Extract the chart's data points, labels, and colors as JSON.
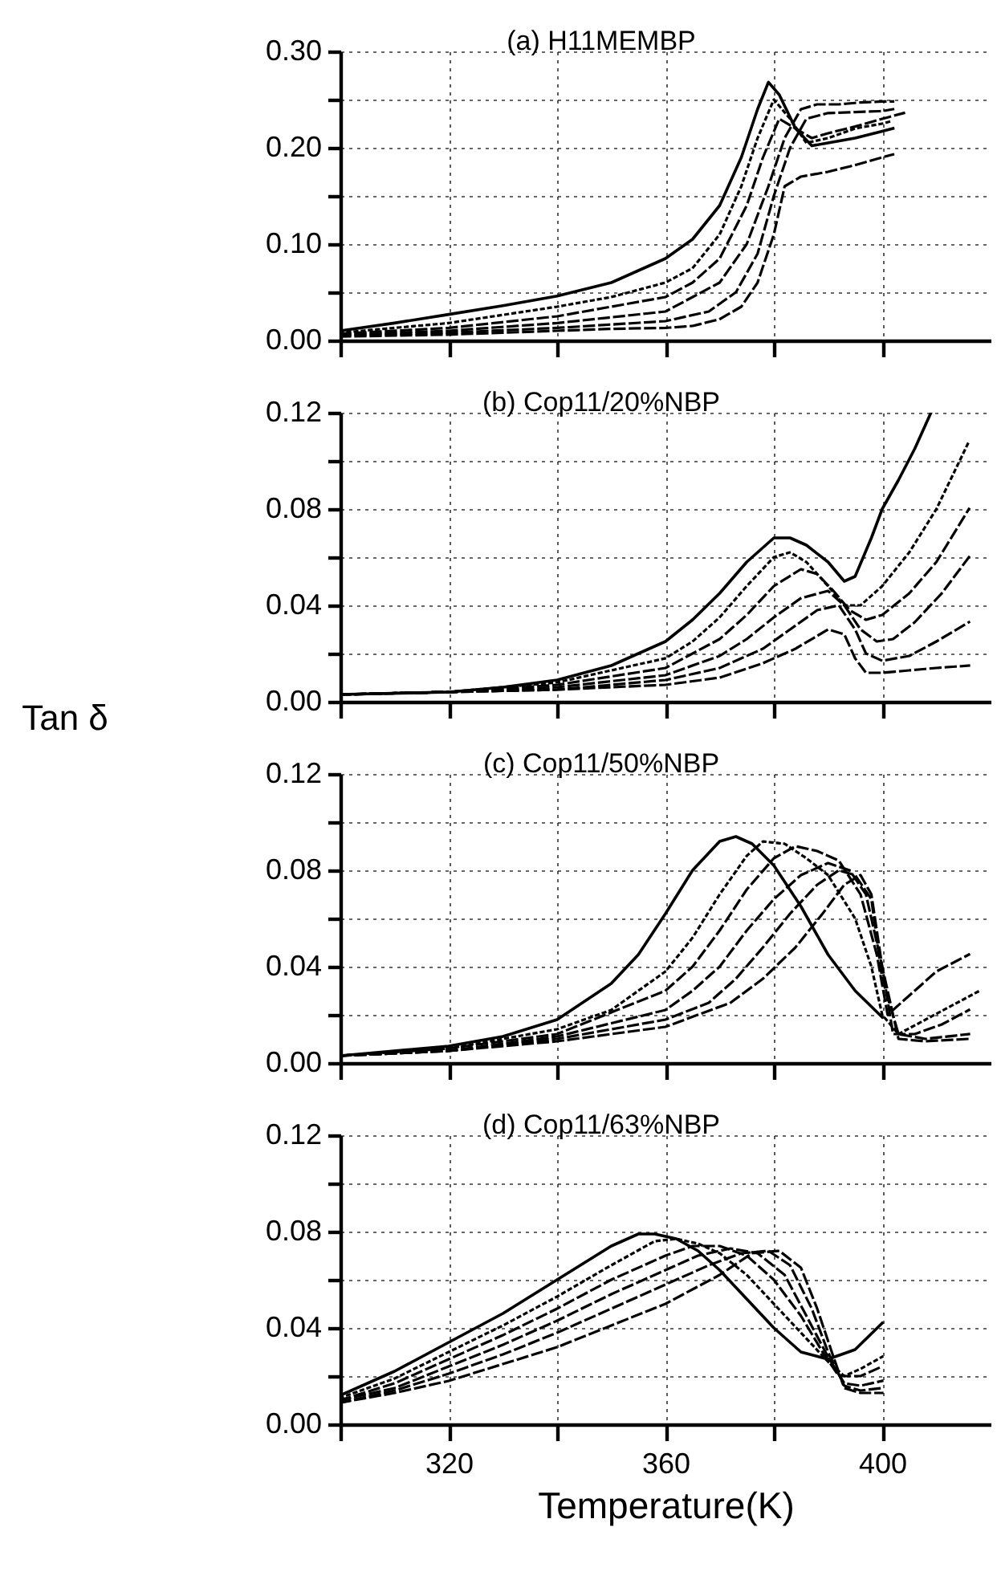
{
  "chart_data": [
    {
      "type": "line",
      "title": "(a) H11MEMBP",
      "xlim": [
        300,
        420
      ],
      "xticks": [
        {
          "value": 300,
          "label": null
        },
        320,
        {
          "value": 340,
          "label": null
        },
        360,
        {
          "value": 380,
          "label": null
        },
        400
      ],
      "ylim": [
        0,
        0.3
      ],
      "yticks": [
        {
          "value": 0,
          "label": "0.00"
        },
        {
          "value": 0.05,
          "label": null
        },
        {
          "value": 0.1,
          "label": "0.10"
        },
        {
          "value": 0.15,
          "label": null
        },
        {
          "value": 0.2,
          "label": "0.20"
        },
        {
          "value": 0.25,
          "label": null
        },
        {
          "value": 0.3,
          "label": "0.30"
        }
      ],
      "grid": true,
      "tick_labels": "y",
      "series": [
        {
          "color": "#000000",
          "line_style": "solid",
          "x": [
            300,
            310,
            320,
            330,
            340,
            350,
            360,
            365,
            370,
            374,
            377,
            379,
            381,
            384,
            387,
            390,
            395,
            400,
            402
          ],
          "values": [
            0.01,
            0.018,
            0.027,
            0.036,
            0.046,
            0.06,
            0.085,
            0.105,
            0.14,
            0.19,
            0.24,
            0.268,
            0.255,
            0.22,
            0.202,
            0.205,
            0.21,
            0.217,
            0.22
          ]
        },
        {
          "color": "#000000",
          "line_style": "dotted",
          "x": [
            300,
            320,
            340,
            350,
            360,
            365,
            370,
            374,
            377,
            380,
            383,
            386,
            390,
            395,
            400,
            402
          ],
          "values": [
            0.008,
            0.018,
            0.035,
            0.045,
            0.06,
            0.075,
            0.11,
            0.16,
            0.21,
            0.25,
            0.23,
            0.205,
            0.21,
            0.22,
            0.225,
            0.228
          ]
        },
        {
          "color": "#000000",
          "line_style": "dashed",
          "x": [
            300,
            320,
            340,
            360,
            365,
            370,
            375,
            378,
            381,
            384,
            387,
            390,
            395,
            400,
            404
          ],
          "values": [
            0.007,
            0.013,
            0.025,
            0.045,
            0.06,
            0.085,
            0.14,
            0.19,
            0.23,
            0.22,
            0.21,
            0.215,
            0.222,
            0.23,
            0.236
          ]
        },
        {
          "color": "#000000",
          "line_style": "dashed",
          "x": [
            300,
            320,
            340,
            360,
            365,
            370,
            375,
            379,
            382,
            385,
            388,
            392,
            396,
            400,
            402
          ],
          "values": [
            0.006,
            0.01,
            0.018,
            0.03,
            0.045,
            0.06,
            0.1,
            0.16,
            0.21,
            0.24,
            0.245,
            0.245,
            0.247,
            0.248,
            0.248
          ]
        },
        {
          "color": "#000000",
          "line_style": "dashed",
          "x": [
            300,
            320,
            340,
            360,
            368,
            373,
            377,
            380,
            383,
            386,
            390,
            395,
            400,
            402
          ],
          "values": [
            0.005,
            0.008,
            0.013,
            0.02,
            0.03,
            0.05,
            0.09,
            0.15,
            0.2,
            0.23,
            0.236,
            0.237,
            0.238,
            0.24
          ]
        },
        {
          "color": "#000000",
          "line_style": "dashed",
          "x": [
            300,
            320,
            340,
            350,
            360,
            365,
            370,
            374,
            377,
            380,
            382,
            385,
            390,
            395,
            400,
            402
          ],
          "values": [
            0.004,
            0.006,
            0.01,
            0.012,
            0.013,
            0.015,
            0.022,
            0.035,
            0.06,
            0.11,
            0.16,
            0.17,
            0.175,
            0.182,
            0.19,
            0.193
          ]
        }
      ]
    },
    {
      "type": "line",
      "title": "(b) Cop11/20%NBP",
      "ylabel": "Tan δ",
      "xlim": [
        300,
        420
      ],
      "xticks": [
        {
          "value": 300,
          "label": null
        },
        320,
        {
          "value": 340,
          "label": null
        },
        360,
        {
          "value": 380,
          "label": null
        },
        400
      ],
      "ylim": [
        0,
        0.12
      ],
      "yticks": [
        {
          "value": 0,
          "label": "0.00"
        },
        {
          "value": 0.02,
          "label": null
        },
        {
          "value": 0.04,
          "label": "0.04"
        },
        {
          "value": 0.06,
          "label": null
        },
        {
          "value": 0.08,
          "label": "0.08"
        },
        {
          "value": 0.1,
          "label": null
        },
        {
          "value": 0.12,
          "label": "0.12"
        }
      ],
      "grid": true,
      "tick_labels": "y",
      "series": [
        {
          "color": "#000000",
          "line_style": "solid",
          "x": [
            300,
            320,
            330,
            340,
            350,
            360,
            365,
            370,
            375,
            380,
            383,
            386,
            390,
            393,
            395,
            398,
            400,
            403,
            406,
            409
          ],
          "values": [
            0.003,
            0.004,
            0.006,
            0.009,
            0.015,
            0.025,
            0.034,
            0.045,
            0.058,
            0.068,
            0.068,
            0.065,
            0.058,
            0.05,
            0.052,
            0.068,
            0.08,
            0.092,
            0.105,
            0.12
          ]
        },
        {
          "color": "#000000",
          "line_style": "dotted",
          "x": [
            300,
            320,
            340,
            360,
            365,
            370,
            375,
            380,
            383,
            386,
            390,
            393,
            396,
            400,
            405,
            410,
            416
          ],
          "values": [
            0.003,
            0.004,
            0.008,
            0.018,
            0.025,
            0.035,
            0.048,
            0.06,
            0.062,
            0.058,
            0.048,
            0.04,
            0.04,
            0.048,
            0.062,
            0.08,
            0.108
          ]
        },
        {
          "color": "#000000",
          "line_style": "dashed",
          "x": [
            300,
            320,
            340,
            360,
            370,
            375,
            380,
            385,
            388,
            391,
            394,
            397,
            400,
            405,
            410,
            416
          ],
          "values": [
            0.003,
            0.004,
            0.007,
            0.014,
            0.026,
            0.036,
            0.048,
            0.055,
            0.053,
            0.046,
            0.038,
            0.034,
            0.036,
            0.045,
            0.058,
            0.08
          ]
        },
        {
          "color": "#000000",
          "line_style": "dashed",
          "x": [
            300,
            320,
            340,
            360,
            370,
            375,
            380,
            385,
            390,
            393,
            396,
            399,
            402,
            406,
            411,
            416
          ],
          "values": [
            0.003,
            0.004,
            0.006,
            0.011,
            0.019,
            0.026,
            0.035,
            0.043,
            0.046,
            0.04,
            0.03,
            0.025,
            0.026,
            0.033,
            0.045,
            0.06
          ]
        },
        {
          "color": "#000000",
          "line_style": "dashed",
          "x": [
            300,
            320,
            340,
            360,
            370,
            378,
            383,
            388,
            392,
            395,
            397,
            400,
            405,
            410,
            416
          ],
          "values": [
            0.003,
            0.004,
            0.005,
            0.009,
            0.014,
            0.022,
            0.03,
            0.038,
            0.04,
            0.03,
            0.02,
            0.017,
            0.019,
            0.025,
            0.033
          ]
        },
        {
          "color": "#000000",
          "line_style": "dashed",
          "x": [
            300,
            320,
            340,
            360,
            370,
            378,
            384,
            390,
            393,
            395,
            397,
            400,
            405,
            410,
            416
          ],
          "values": [
            0.003,
            0.004,
            0.005,
            0.007,
            0.01,
            0.016,
            0.022,
            0.03,
            0.028,
            0.018,
            0.012,
            0.012,
            0.013,
            0.014,
            0.015
          ]
        }
      ]
    },
    {
      "type": "line",
      "title": "(c) Cop11/50%NBP",
      "xlim": [
        300,
        420
      ],
      "xticks": [
        {
          "value": 300,
          "label": null
        },
        320,
        {
          "value": 340,
          "label": null
        },
        360,
        {
          "value": 380,
          "label": null
        },
        400
      ],
      "ylim": [
        0,
        0.12
      ],
      "yticks": [
        {
          "value": 0,
          "label": "0.00"
        },
        {
          "value": 0.02,
          "label": null
        },
        {
          "value": 0.04,
          "label": "0.04"
        },
        {
          "value": 0.06,
          "label": null
        },
        {
          "value": 0.08,
          "label": "0.08"
        },
        {
          "value": 0.1,
          "label": null
        },
        {
          "value": 0.12,
          "label": "0.12"
        }
      ],
      "grid": true,
      "tick_labels": "y",
      "series": [
        {
          "color": "#000000",
          "line_style": "solid",
          "x": [
            300,
            320,
            330,
            340,
            350,
            355,
            360,
            365,
            370,
            373,
            376,
            380,
            385,
            390,
            395,
            400
          ],
          "values": [
            0.003,
            0.007,
            0.011,
            0.018,
            0.033,
            0.045,
            0.062,
            0.08,
            0.092,
            0.094,
            0.091,
            0.082,
            0.065,
            0.045,
            0.03,
            0.019
          ]
        },
        {
          "color": "#000000",
          "line_style": "dotted",
          "x": [
            300,
            320,
            340,
            350,
            360,
            365,
            370,
            375,
            378,
            382,
            386,
            390,
            395,
            398,
            400,
            403,
            408,
            413,
            418
          ],
          "values": [
            0.003,
            0.006,
            0.014,
            0.022,
            0.038,
            0.052,
            0.07,
            0.086,
            0.092,
            0.091,
            0.085,
            0.078,
            0.06,
            0.04,
            0.02,
            0.012,
            0.018,
            0.024,
            0.03
          ]
        },
        {
          "color": "#000000",
          "line_style": "dashed",
          "x": [
            300,
            320,
            340,
            360,
            365,
            370,
            375,
            380,
            384,
            388,
            392,
            396,
            399,
            401,
            405,
            410,
            416
          ],
          "values": [
            0.003,
            0.006,
            0.012,
            0.03,
            0.04,
            0.055,
            0.072,
            0.085,
            0.09,
            0.088,
            0.084,
            0.07,
            0.045,
            0.02,
            0.028,
            0.038,
            0.045
          ]
        },
        {
          "color": "#000000",
          "line_style": "dashed",
          "x": [
            300,
            320,
            340,
            360,
            365,
            370,
            375,
            380,
            385,
            390,
            394,
            397,
            400,
            402,
            406,
            411,
            416
          ],
          "values": [
            0.003,
            0.005,
            0.011,
            0.022,
            0.03,
            0.04,
            0.055,
            0.068,
            0.078,
            0.083,
            0.08,
            0.07,
            0.04,
            0.012,
            0.012,
            0.016,
            0.022
          ]
        },
        {
          "color": "#000000",
          "line_style": "dashed",
          "x": [
            300,
            320,
            340,
            360,
            368,
            373,
            378,
            383,
            388,
            392,
            395,
            398,
            400,
            403,
            408,
            416
          ],
          "values": [
            0.003,
            0.005,
            0.01,
            0.018,
            0.025,
            0.035,
            0.048,
            0.062,
            0.074,
            0.08,
            0.078,
            0.068,
            0.035,
            0.012,
            0.01,
            0.012
          ]
        },
        {
          "color": "#000000",
          "line_style": "dashed",
          "x": [
            300,
            320,
            340,
            360,
            366,
            372,
            378,
            384,
            389,
            393,
            396,
            398,
            400,
            403,
            408,
            416
          ],
          "values": [
            0.003,
            0.005,
            0.009,
            0.015,
            0.02,
            0.025,
            0.035,
            0.048,
            0.062,
            0.074,
            0.078,
            0.07,
            0.04,
            0.01,
            0.009,
            0.01
          ]
        }
      ]
    },
    {
      "type": "line",
      "title": "(d) Cop11/63%NBP",
      "xlabel": "Temperature(K)",
      "xlim": [
        300,
        420
      ],
      "xticks": [
        {
          "value": 300,
          "label": null
        },
        320,
        {
          "value": 340,
          "label": null
        },
        360,
        {
          "value": 380,
          "label": null
        },
        400
      ],
      "ylim": [
        0,
        0.12
      ],
      "yticks": [
        {
          "value": 0,
          "label": "0.00"
        },
        {
          "value": 0.02,
          "label": null
        },
        {
          "value": 0.04,
          "label": "0.04"
        },
        {
          "value": 0.06,
          "label": null
        },
        {
          "value": 0.08,
          "label": "0.08"
        },
        {
          "value": 0.1,
          "label": null
        },
        {
          "value": 0.12,
          "label": "0.12"
        }
      ],
      "grid": true,
      "series": [
        {
          "color": "#000000",
          "line_style": "solid",
          "x": [
            300,
            310,
            320,
            330,
            340,
            345,
            350,
            355,
            358,
            362,
            366,
            370,
            375,
            380,
            385,
            390,
            395,
            400
          ],
          "values": [
            0.012,
            0.022,
            0.034,
            0.046,
            0.06,
            0.067,
            0.074,
            0.079,
            0.079,
            0.077,
            0.072,
            0.064,
            0.052,
            0.04,
            0.03,
            0.027,
            0.031,
            0.042
          ]
        },
        {
          "color": "#000000",
          "line_style": "dotted",
          "x": [
            300,
            310,
            320,
            330,
            340,
            350,
            358,
            362,
            366,
            370,
            375,
            380,
            385,
            390,
            393,
            396,
            400
          ],
          "values": [
            0.011,
            0.019,
            0.03,
            0.041,
            0.053,
            0.066,
            0.076,
            0.077,
            0.075,
            0.071,
            0.062,
            0.05,
            0.038,
            0.026,
            0.02,
            0.023,
            0.028
          ]
        },
        {
          "color": "#000000",
          "line_style": "dashed",
          "x": [
            300,
            310,
            320,
            330,
            340,
            350,
            360,
            365,
            370,
            375,
            380,
            385,
            389,
            392,
            396,
            400
          ],
          "values": [
            0.01,
            0.017,
            0.027,
            0.037,
            0.048,
            0.06,
            0.07,
            0.074,
            0.074,
            0.07,
            0.06,
            0.045,
            0.03,
            0.02,
            0.02,
            0.024
          ]
        },
        {
          "color": "#000000",
          "line_style": "dashed",
          "x": [
            300,
            310,
            320,
            330,
            340,
            350,
            360,
            366,
            372,
            377,
            382,
            386,
            390,
            393,
            396,
            400
          ],
          "values": [
            0.01,
            0.015,
            0.024,
            0.033,
            0.043,
            0.054,
            0.064,
            0.07,
            0.073,
            0.071,
            0.062,
            0.045,
            0.028,
            0.017,
            0.016,
            0.018
          ]
        },
        {
          "color": "#000000",
          "line_style": "dashed",
          "x": [
            300,
            310,
            320,
            330,
            340,
            350,
            360,
            368,
            374,
            379,
            383,
            387,
            390,
            393,
            396,
            400
          ],
          "values": [
            0.009,
            0.014,
            0.021,
            0.029,
            0.038,
            0.048,
            0.058,
            0.066,
            0.071,
            0.072,
            0.066,
            0.048,
            0.03,
            0.016,
            0.014,
            0.015
          ]
        },
        {
          "color": "#000000",
          "line_style": "dashed",
          "x": [
            300,
            310,
            320,
            330,
            340,
            350,
            360,
            370,
            376,
            381,
            385,
            388,
            391,
            393,
            396,
            400
          ],
          "values": [
            0.009,
            0.013,
            0.018,
            0.025,
            0.032,
            0.041,
            0.05,
            0.062,
            0.071,
            0.072,
            0.065,
            0.048,
            0.028,
            0.015,
            0.013,
            0.013
          ]
        }
      ]
    }
  ]
}
